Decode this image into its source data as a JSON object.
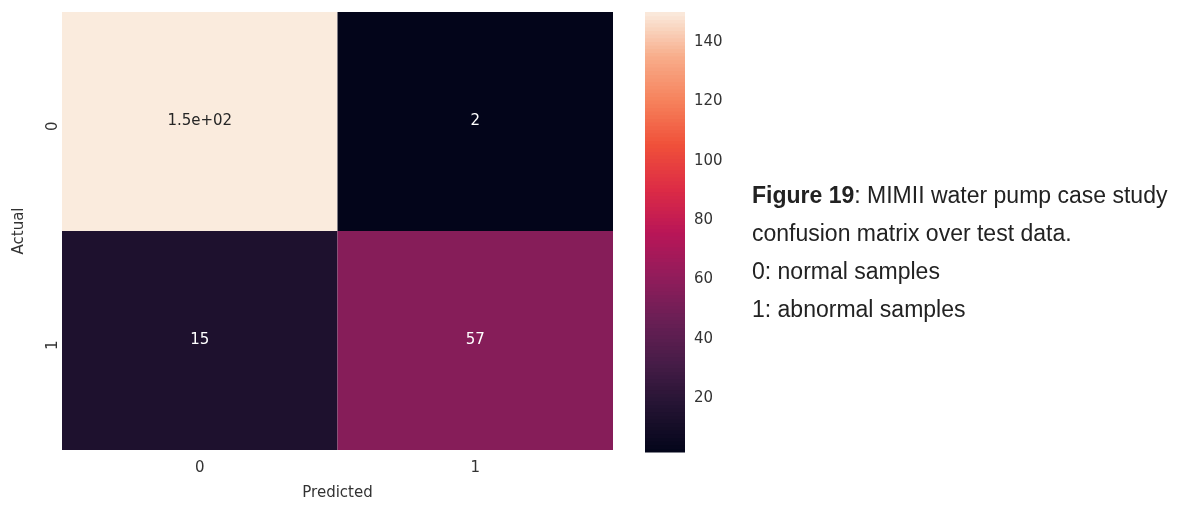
{
  "chart_data": {
    "type": "heatmap",
    "xlabel": "Predicted",
    "ylabel": "Actual",
    "categories": [
      "0",
      "1"
    ],
    "y_categories": [
      "0",
      "1"
    ],
    "cells": [
      [
        150,
        2
      ],
      [
        15,
        57
      ]
    ],
    "cell_labels": [
      [
        "1.5e+02",
        "2"
      ],
      [
        "15",
        "57"
      ]
    ],
    "clim": [
      2,
      150
    ],
    "cticks": [
      20,
      40,
      60,
      80,
      100,
      120,
      140
    ],
    "annotations": [
      "Figure 19",
      ": MIMII water pump case study confusion matrix over test data.",
      "0: normal samples",
      "1: abnormal samples"
    ]
  }
}
